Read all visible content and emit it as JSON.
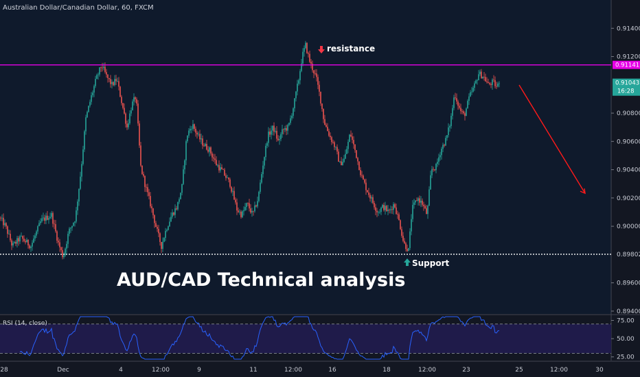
{
  "chart_data": {
    "type": "candlestick",
    "title": "Australian Dollar/Canadian Dollar, 60, FXCM",
    "overlay_title": "AUD/CAD Technical analysis",
    "y_ticks": [
      "0.91400",
      "0.91200",
      "0.90800",
      "0.90600",
      "0.90400",
      "0.90200",
      "0.90000",
      "0.89600",
      "0.89400"
    ],
    "x_ticks": [
      "28",
      "Dec",
      "4",
      "12:00",
      "9",
      "11",
      "12:00",
      "16",
      "18",
      "12:00",
      "23",
      "25",
      "12:00",
      "30"
    ],
    "ylim": [
      0.8938,
      0.916
    ],
    "levels": {
      "resistance": {
        "label": "resistance",
        "value": 0.91141,
        "value_label": "0.91141",
        "color": "#e600e6"
      },
      "support": {
        "label": "Support",
        "value": 0.89802,
        "value_label": "0.89802",
        "color": "#ffffff"
      }
    },
    "current_price": {
      "value_label": "0.91043",
      "countdown": "16:28",
      "color": "#26a69a"
    },
    "price_path": [
      [
        0,
        0.9006
      ],
      [
        8,
        0.9
      ],
      [
        18,
        0.8986
      ],
      [
        30,
        0.8992
      ],
      [
        45,
        0.8986
      ],
      [
        60,
        0.9004
      ],
      [
        75,
        0.9008
      ],
      [
        85,
        0.8988
      ],
      [
        92,
        0.8978
      ],
      [
        100,
        0.8996
      ],
      [
        110,
        0.9006
      ],
      [
        118,
        0.904
      ],
      [
        125,
        0.9076
      ],
      [
        132,
        0.909
      ],
      [
        140,
        0.9104
      ],
      [
        148,
        0.9114
      ],
      [
        155,
        0.9106
      ],
      [
        163,
        0.91
      ],
      [
        170,
        0.9104
      ],
      [
        178,
        0.9086
      ],
      [
        185,
        0.907
      ],
      [
        192,
        0.9086
      ],
      [
        198,
        0.9092
      ],
      [
        205,
        0.9042
      ],
      [
        212,
        0.9028
      ],
      [
        220,
        0.9014
      ],
      [
        228,
        0.8998
      ],
      [
        235,
        0.8986
      ],
      [
        242,
        0.8998
      ],
      [
        250,
        0.9008
      ],
      [
        258,
        0.9014
      ],
      [
        265,
        0.9028
      ],
      [
        272,
        0.9064
      ],
      [
        280,
        0.9072
      ],
      [
        288,
        0.9064
      ],
      [
        296,
        0.9058
      ],
      [
        305,
        0.9054
      ],
      [
        315,
        0.9044
      ],
      [
        325,
        0.9038
      ],
      [
        335,
        0.903
      ],
      [
        345,
        0.9012
      ],
      [
        352,
        0.9008
      ],
      [
        360,
        0.9016
      ],
      [
        368,
        0.9008
      ],
      [
        376,
        0.902
      ],
      [
        383,
        0.9044
      ],
      [
        390,
        0.9064
      ],
      [
        398,
        0.907
      ],
      [
        405,
        0.906
      ],
      [
        412,
        0.9068
      ],
      [
        420,
        0.907
      ],
      [
        428,
        0.9086
      ],
      [
        435,
        0.9104
      ],
      [
        440,
        0.912
      ],
      [
        445,
        0.9128
      ],
      [
        452,
        0.9115
      ],
      [
        460,
        0.9106
      ],
      [
        466,
        0.9092
      ],
      [
        472,
        0.9074
      ],
      [
        480,
        0.9064
      ],
      [
        488,
        0.9056
      ],
      [
        495,
        0.9044
      ],
      [
        502,
        0.9048
      ],
      [
        510,
        0.9066
      ],
      [
        518,
        0.9052
      ],
      [
        526,
        0.9036
      ],
      [
        534,
        0.9026
      ],
      [
        542,
        0.9018
      ],
      [
        550,
        0.901
      ],
      [
        558,
        0.9014
      ],
      [
        566,
        0.901
      ],
      [
        574,
        0.9016
      ],
      [
        582,
        0.9002
      ],
      [
        588,
        0.8988
      ],
      [
        595,
        0.8983
      ],
      [
        600,
        0.9012
      ],
      [
        608,
        0.902
      ],
      [
        615,
        0.9016
      ],
      [
        622,
        0.9008
      ],
      [
        628,
        0.904
      ],
      [
        635,
        0.9042
      ],
      [
        642,
        0.9054
      ],
      [
        650,
        0.9062
      ],
      [
        656,
        0.9074
      ],
      [
        662,
        0.9094
      ],
      [
        670,
        0.9082
      ],
      [
        676,
        0.9078
      ],
      [
        684,
        0.9092
      ],
      [
        690,
        0.9098
      ],
      [
        697,
        0.9108
      ],
      [
        704,
        0.9106
      ],
      [
        711,
        0.91
      ],
      [
        718,
        0.9102
      ],
      [
        724,
        0.9098
      ],
      [
        728,
        0.91043
      ]
    ],
    "rsi": {
      "label": "RSI (14, close)",
      "ticks": [
        "75.00",
        "50.00",
        "25.00"
      ],
      "upper": 70,
      "lower": 30,
      "ylim": [
        20,
        82
      ]
    }
  },
  "annotations": {
    "resistance_text": "resistance",
    "support_text": "Support"
  }
}
